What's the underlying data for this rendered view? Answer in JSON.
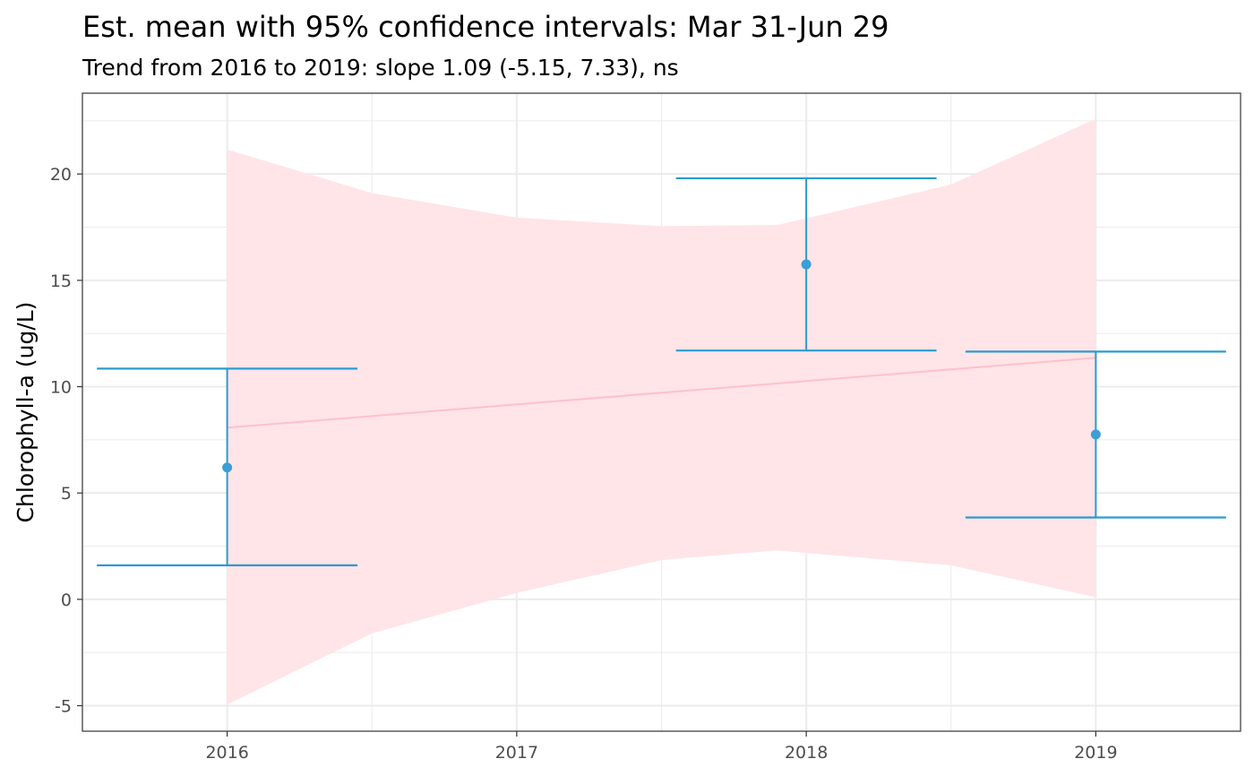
{
  "chart_data": {
    "type": "scatter",
    "title": "Est. mean with 95% confidence intervals: Mar 31-Jun 29",
    "subtitle": "Trend from 2016 to 2019: slope 1.09 (-5.15, 7.33), ns",
    "xlabel": "",
    "ylabel": "Chlorophyll-a (ug/L)",
    "x_ticks": [
      "2016",
      "2017",
      "2018",
      "2019"
    ],
    "y_ticks": [
      "-5",
      "0",
      "5",
      "10",
      "15",
      "20"
    ],
    "xlim": [
      2015.5,
      2019.5
    ],
    "ylim": [
      -6.2,
      23.8
    ],
    "grid": true,
    "colors": {
      "point": "#3a9fd6",
      "errorbar": "#2b9bd0",
      "trend_line": "#ffc0cb",
      "ribbon": "#ffe4e8",
      "axis_border": "#333333",
      "grid": "#ebebeb"
    },
    "series": [
      {
        "type": "point_errorbar",
        "x": [
          2016,
          2018,
          2019
        ],
        "y": [
          6.2,
          15.75,
          7.75
        ],
        "ymin": [
          1.6,
          11.7,
          3.85
        ],
        "ymax": [
          10.85,
          19.8,
          11.65
        ]
      }
    ],
    "trend": {
      "x": [
        2016,
        2019
      ],
      "y": [
        8.07,
        11.36
      ]
    },
    "ribbon": {
      "x": [
        2016,
        2016.5,
        2017,
        2017.5,
        2017.9,
        2018.5,
        2019
      ],
      "lower": [
        -4.95,
        -1.6,
        0.3,
        1.85,
        2.3,
        1.6,
        0.1
      ],
      "upper": [
        21.15,
        19.1,
        17.95,
        17.55,
        17.6,
        19.5,
        22.6
      ]
    }
  }
}
